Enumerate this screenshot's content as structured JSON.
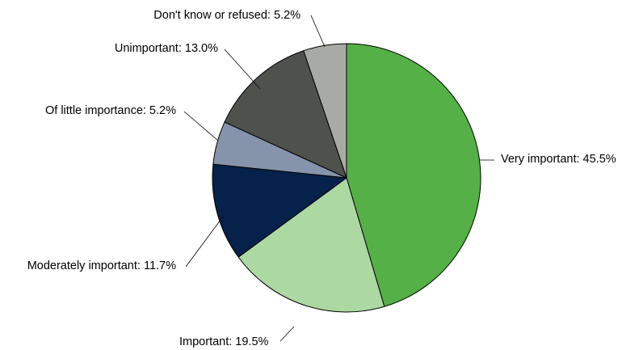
{
  "chart_data": {
    "type": "pie",
    "title": "",
    "start_angle_deg": 0,
    "direction": "clockwise",
    "slices": [
      {
        "label": "Very important: 45.5%",
        "category": "Very important",
        "value": 45.5,
        "color": "#55b147"
      },
      {
        "label": "Important: 19.5%",
        "category": "Important",
        "value": 19.5,
        "color": "#acd9a2"
      },
      {
        "label": "Moderately important: 11.7%",
        "category": "Moderately important",
        "value": 11.7,
        "color": "#06224a"
      },
      {
        "label": "Of little importance: 5.2%",
        "category": "Of little importance",
        "value": 5.2,
        "color": "#8694ab"
      },
      {
        "label": "Unimportant: 13.0%",
        "category": "Unimportant",
        "value": 13.0,
        "color": "#4e514c"
      },
      {
        "label": "Don't know or refused: 5.2%",
        "category": "Don't know or refused",
        "value": 5.2,
        "color": "#a8aaa5"
      }
    ]
  }
}
